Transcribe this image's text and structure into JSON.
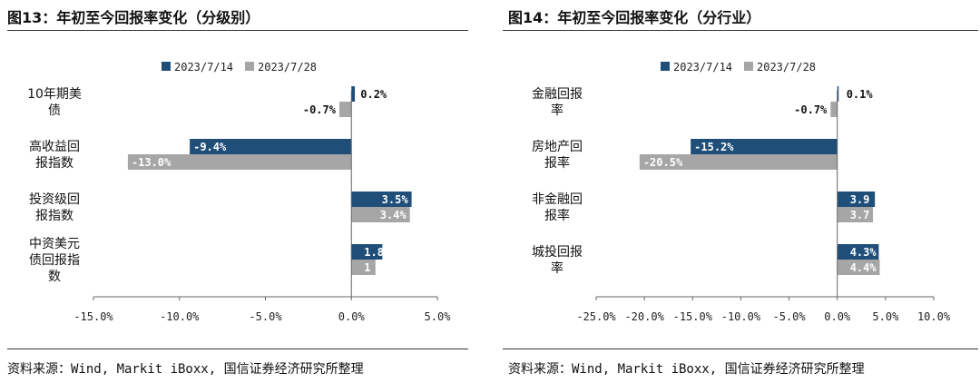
{
  "source_text": "资料来源：Wind, Markit iBoxx, 国信证券经济研究所整理",
  "colors": {
    "series1": "#1f4e79",
    "series2": "#a6a6a6"
  },
  "chart_data": [
    {
      "type": "bar",
      "orientation": "horizontal",
      "title": "图13：年初至今回报率变化（分级别）",
      "categories": [
        "10年期美\n债",
        "高收益回\n报指数",
        "投资级回\n报指数",
        "中资美元\n债回报指\n数"
      ],
      "series": [
        {
          "name": "2023/7/14",
          "values": [
            0.2,
            -9.4,
            3.5,
            1.8
          ],
          "labels": [
            "0.2%",
            "-9.4%",
            "3.5%",
            "1.8"
          ]
        },
        {
          "name": "2023/7/28",
          "values": [
            -0.7,
            -13.0,
            3.4,
            1.4
          ],
          "labels": [
            "-0.7%",
            "-13.0%",
            "3.4%",
            "1"
          ]
        }
      ],
      "xlim": [
        -15,
        5
      ],
      "xticks": [
        -15,
        -10,
        -5,
        0,
        5
      ],
      "xtick_labels": [
        "-15.0%",
        "-10.0%",
        "-5.0%",
        "0.0%",
        "5.0%"
      ],
      "legend": "top",
      "grid": false
    },
    {
      "type": "bar",
      "orientation": "horizontal",
      "title": "图14：年初至今回报率变化（分行业）",
      "categories": [
        "金融回报\n率",
        "房地产回\n报率",
        "非金融回\n报率",
        "城投回报\n率"
      ],
      "series": [
        {
          "name": "2023/7/14",
          "values": [
            0.1,
            -15.2,
            3.9,
            4.3
          ],
          "labels": [
            "0.1%",
            "-15.2%",
            "3.9",
            "4.3%"
          ]
        },
        {
          "name": "2023/7/28",
          "values": [
            -0.7,
            -20.5,
            3.7,
            4.4
          ],
          "labels": [
            "-0.7%",
            "-20.5%",
            "3.7",
            "4.4%"
          ]
        }
      ],
      "xlim": [
        -25,
        10
      ],
      "xticks": [
        -25,
        -20,
        -15,
        -10,
        -5,
        0,
        5,
        10
      ],
      "xtick_labels": [
        "-25.0%",
        "-20.0%",
        "-15.0%",
        "-10.0%",
        "-5.0%",
        "0.0%",
        "5.0%",
        "10.0%"
      ],
      "legend": "top",
      "grid": false
    }
  ]
}
